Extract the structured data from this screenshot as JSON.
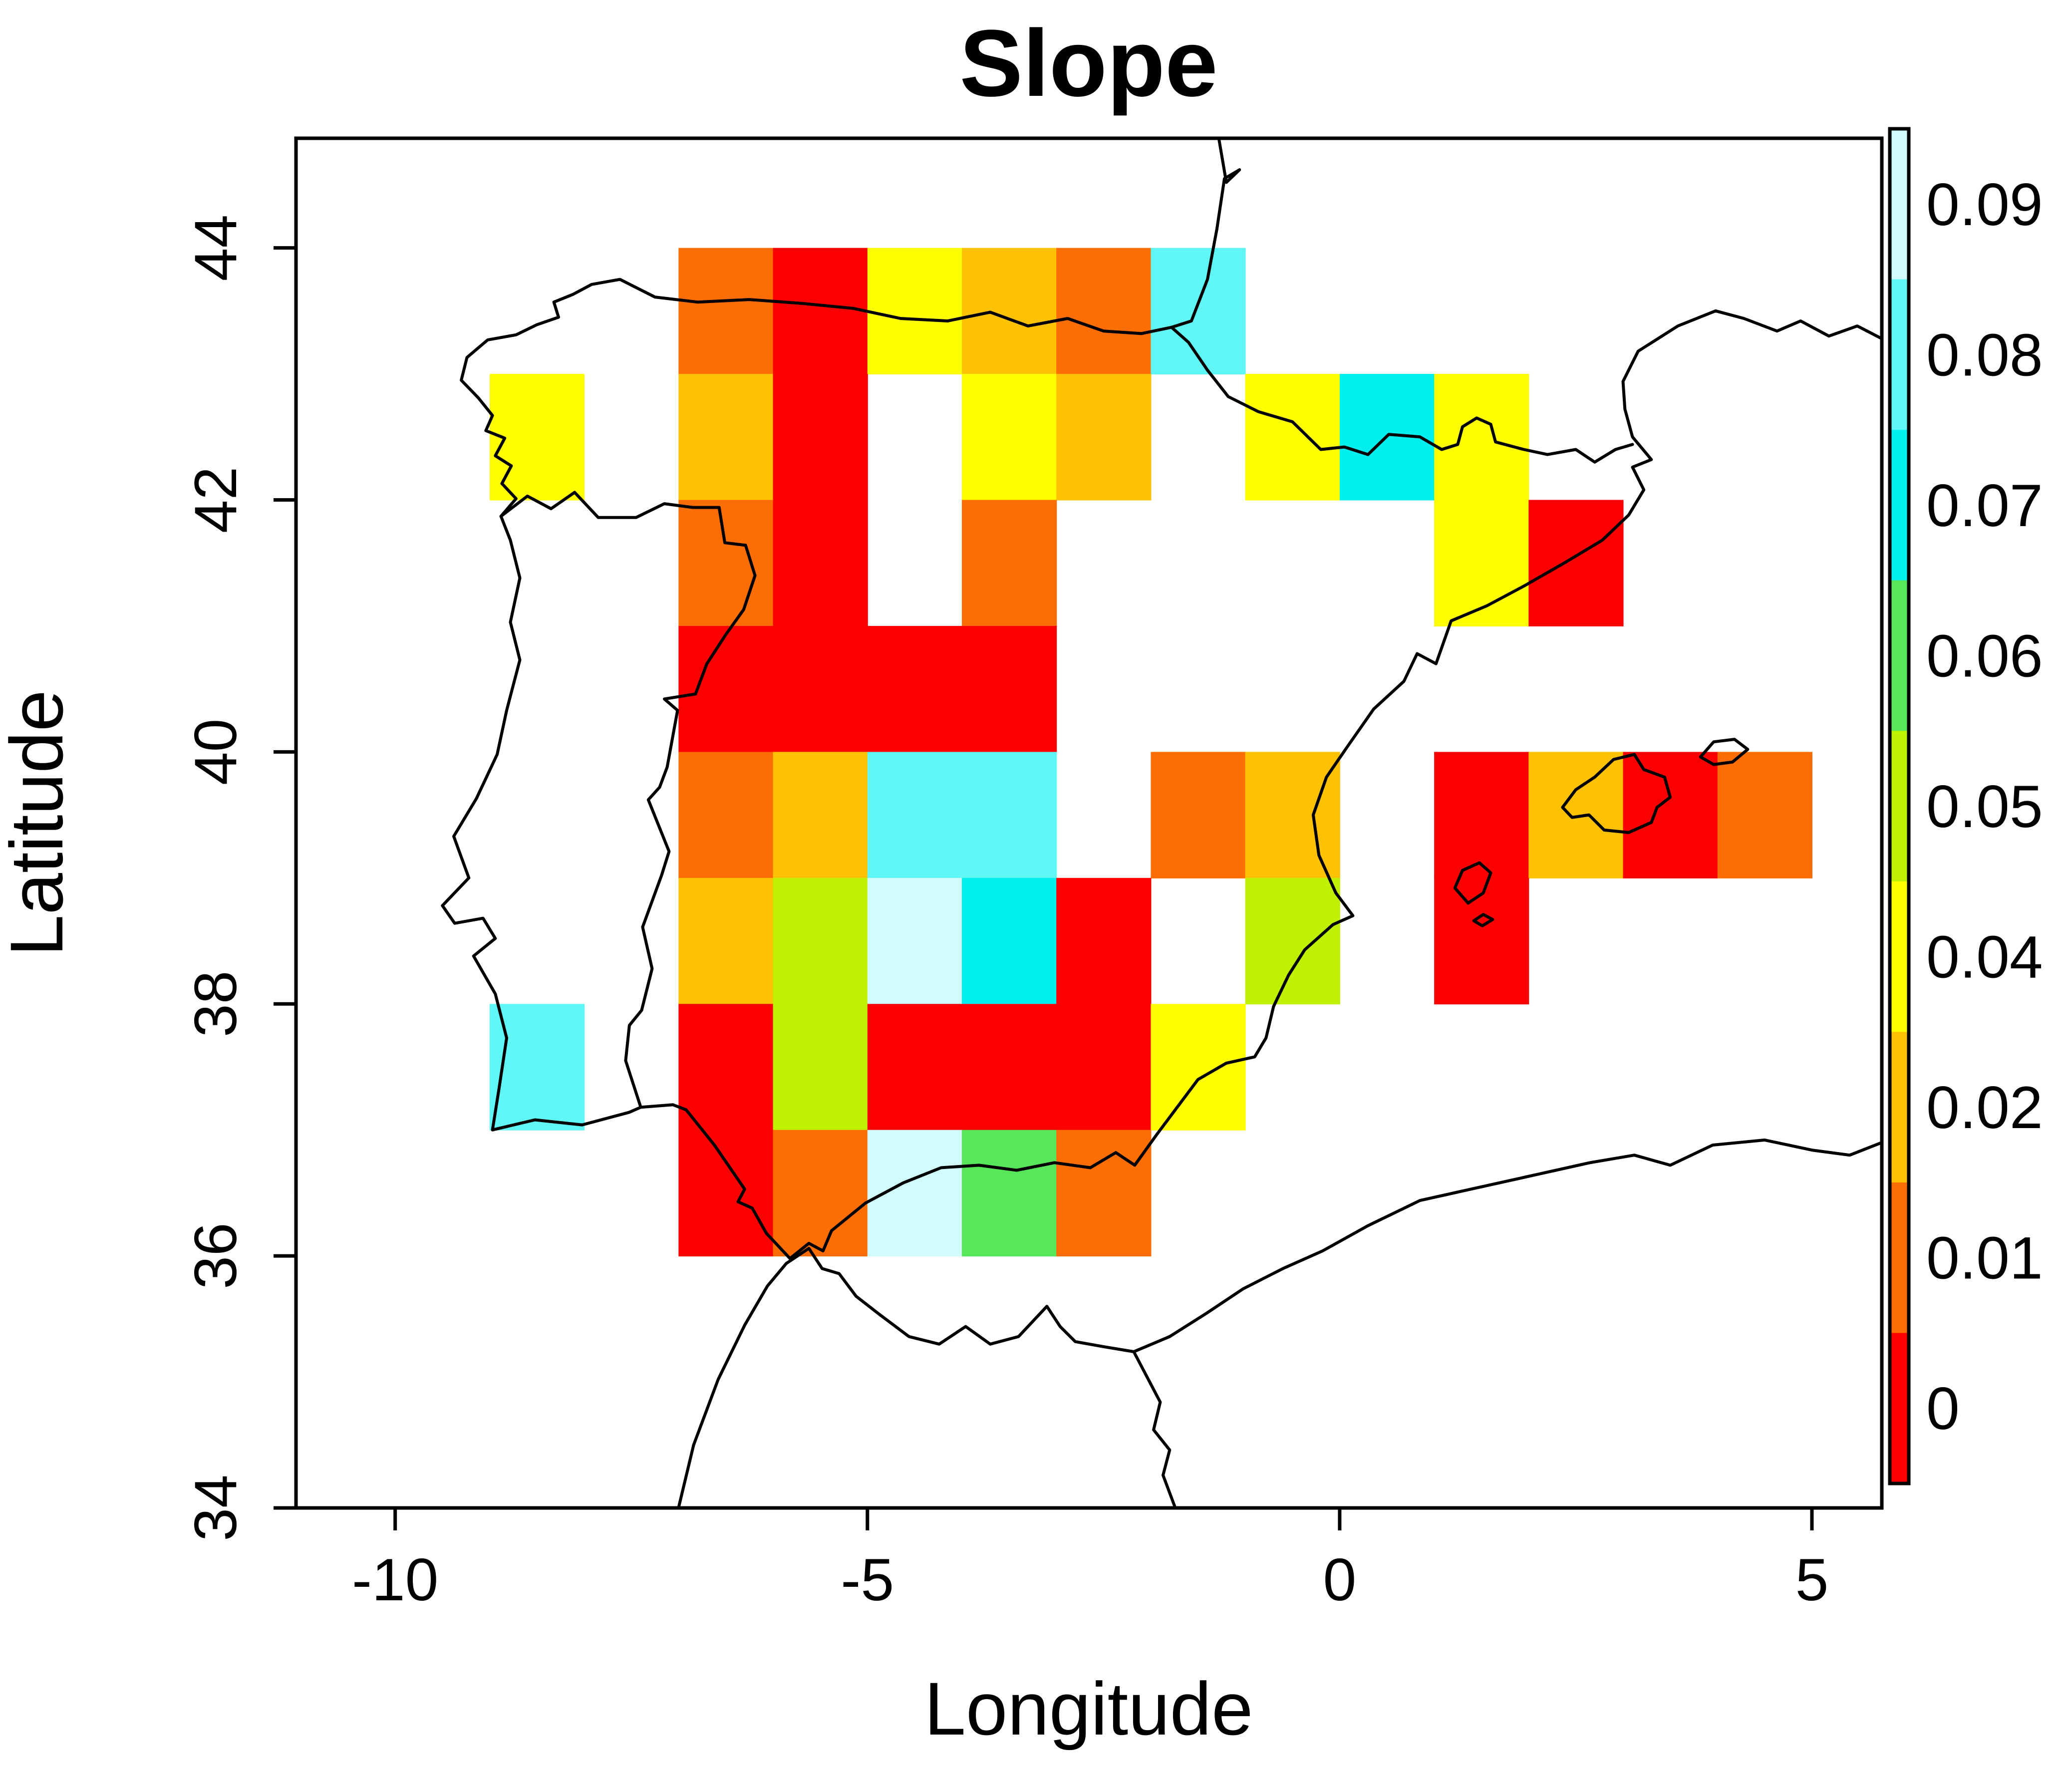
{
  "title": "Slope",
  "axes": {
    "x_label": "Longitude",
    "y_label": "Latitude",
    "x_ticks": [
      {
        "value": -10,
        "label": "-10"
      },
      {
        "value": -5,
        "label": "-5"
      },
      {
        "value": 0,
        "label": "0"
      },
      {
        "value": 5,
        "label": "5"
      }
    ],
    "y_ticks": [
      {
        "value": 34,
        "label": "34"
      },
      {
        "value": 36,
        "label": "36"
      },
      {
        "value": 38,
        "label": "38"
      },
      {
        "value": 40,
        "label": "40"
      },
      {
        "value": 42,
        "label": "42"
      },
      {
        "value": 44,
        "label": "44"
      }
    ]
  },
  "legend": {
    "position": "right",
    "labels_top_to_bottom": [
      "0.09",
      "0.08",
      "0.07",
      "0.06",
      "0.05",
      "0.04",
      "0.02",
      "0.01",
      "0"
    ]
  },
  "chart_data": {
    "type": "heatmap",
    "title": "Slope",
    "xlabel": "Longitude",
    "ylabel": "Latitude",
    "lon_range": [
      -11.05,
      5.74
    ],
    "lat_range": [
      34,
      44.87
    ],
    "cell_size_deg": 1,
    "grid": false,
    "palette": {
      "0": "#FA0000",
      "0.01": "#FC6E04",
      "0.02": "#FFC103",
      "0.04": "#FFFF00",
      "0.05": "#BFF102",
      "0.06": "#58E65A",
      "0.07": "#00F0F0",
      "0.08": "#60F6F6",
      "0.09": "#D2FBFB"
    },
    "legend_segments_top_to_bottom": [
      "0.09",
      "0.08",
      "0.07",
      "0.06",
      "0.05",
      "0.04",
      "0.02",
      "0.01",
      "0"
    ],
    "cells": [
      {
        "lon": -7,
        "lat": 43,
        "level": "0.01"
      },
      {
        "lon": -6,
        "lat": 43,
        "level": "0"
      },
      {
        "lon": -5,
        "lat": 43,
        "level": "0.04"
      },
      {
        "lon": -4,
        "lat": 43,
        "level": "0.02"
      },
      {
        "lon": -3,
        "lat": 43,
        "level": "0.01"
      },
      {
        "lon": -2,
        "lat": 43,
        "level": "0.08"
      },
      {
        "lon": -9,
        "lat": 42,
        "level": "0.04"
      },
      {
        "lon": -7,
        "lat": 42,
        "level": "0.02"
      },
      {
        "lon": -6,
        "lat": 42,
        "level": "0"
      },
      {
        "lon": -4,
        "lat": 42,
        "level": "0.04"
      },
      {
        "lon": -3,
        "lat": 42,
        "level": "0.02"
      },
      {
        "lon": -1,
        "lat": 42,
        "level": "0.04"
      },
      {
        "lon": 0,
        "lat": 42,
        "level": "0.07"
      },
      {
        "lon": 1,
        "lat": 42,
        "level": "0.04"
      },
      {
        "lon": -7,
        "lat": 41,
        "level": "0.01"
      },
      {
        "lon": -6,
        "lat": 41,
        "level": "0"
      },
      {
        "lon": -4,
        "lat": 41,
        "level": "0.01"
      },
      {
        "lon": 1,
        "lat": 41,
        "level": "0.04"
      },
      {
        "lon": 2,
        "lat": 41,
        "level": "0"
      },
      {
        "lon": -7,
        "lat": 40,
        "level": "0"
      },
      {
        "lon": -6,
        "lat": 40,
        "level": "0"
      },
      {
        "lon": -5,
        "lat": 40,
        "level": "0"
      },
      {
        "lon": -4,
        "lat": 40,
        "level": "0"
      },
      {
        "lon": -7,
        "lat": 39,
        "level": "0.01"
      },
      {
        "lon": -6,
        "lat": 39,
        "level": "0.02"
      },
      {
        "lon": -5,
        "lat": 39,
        "level": "0.08"
      },
      {
        "lon": -4,
        "lat": 39,
        "level": "0.08"
      },
      {
        "lon": -2,
        "lat": 39,
        "level": "0.01"
      },
      {
        "lon": -1,
        "lat": 39,
        "level": "0.02"
      },
      {
        "lon": 1,
        "lat": 39,
        "level": "0"
      },
      {
        "lon": 2,
        "lat": 39,
        "level": "0.02"
      },
      {
        "lon": 3,
        "lat": 39,
        "level": "0"
      },
      {
        "lon": 4,
        "lat": 39,
        "level": "0.01"
      },
      {
        "lon": -7,
        "lat": 38,
        "level": "0.02"
      },
      {
        "lon": -6,
        "lat": 38,
        "level": "0.05"
      },
      {
        "lon": -5,
        "lat": 38,
        "level": "0.09"
      },
      {
        "lon": -4,
        "lat": 38,
        "level": "0.07"
      },
      {
        "lon": -3,
        "lat": 38,
        "level": "0"
      },
      {
        "lon": -1,
        "lat": 38,
        "level": "0.05"
      },
      {
        "lon": 1,
        "lat": 38,
        "level": "0"
      },
      {
        "lon": -9,
        "lat": 37,
        "level": "0.08"
      },
      {
        "lon": -7,
        "lat": 37,
        "level": "0"
      },
      {
        "lon": -6,
        "lat": 37,
        "level": "0.05"
      },
      {
        "lon": -5,
        "lat": 37,
        "level": "0"
      },
      {
        "lon": -4,
        "lat": 37,
        "level": "0"
      },
      {
        "lon": -3,
        "lat": 37,
        "level": "0"
      },
      {
        "lon": -2,
        "lat": 37,
        "level": "0.04"
      },
      {
        "lon": -7,
        "lat": 36,
        "level": "0"
      },
      {
        "lon": -6,
        "lat": 36,
        "level": "0.01"
      },
      {
        "lon": -5,
        "lat": 36,
        "level": "0.09"
      },
      {
        "lon": -4,
        "lat": 36,
        "level": "0.06"
      },
      {
        "lon": -3,
        "lat": 36,
        "level": "0.01"
      }
    ],
    "coastlines": {
      "iberia_france_coast": [
        [
          -1.28,
          44.87
        ],
        [
          -1.2,
          44.52
        ],
        [
          -1.06,
          44.62
        ],
        [
          -1.22,
          44.55
        ],
        [
          -1.3,
          44.15
        ],
        [
          -1.4,
          43.75
        ],
        [
          -1.57,
          43.42
        ],
        [
          -1.78,
          43.37
        ],
        [
          -2.1,
          43.32
        ],
        [
          -2.5,
          43.34
        ],
        [
          -2.88,
          43.44
        ],
        [
          -3.3,
          43.38
        ],
        [
          -3.7,
          43.49
        ],
        [
          -4.15,
          43.42
        ],
        [
          -4.65,
          43.44
        ],
        [
          -5.15,
          43.52
        ],
        [
          -5.7,
          43.56
        ],
        [
          -6.25,
          43.59
        ],
        [
          -6.8,
          43.57
        ],
        [
          -7.25,
          43.61
        ],
        [
          -7.62,
          43.75
        ],
        [
          -7.92,
          43.71
        ],
        [
          -8.12,
          43.63
        ],
        [
          -8.32,
          43.57
        ],
        [
          -8.27,
          43.45
        ],
        [
          -8.5,
          43.39
        ],
        [
          -8.72,
          43.31
        ],
        [
          -9.02,
          43.27
        ],
        [
          -9.24,
          43.13
        ],
        [
          -9.3,
          42.95
        ],
        [
          -9.12,
          42.81
        ],
        [
          -8.97,
          42.67
        ],
        [
          -9.04,
          42.55
        ],
        [
          -8.84,
          42.49
        ],
        [
          -8.94,
          42.35
        ],
        [
          -8.77,
          42.27
        ],
        [
          -8.87,
          42.13
        ],
        [
          -8.72,
          42.01
        ],
        [
          -8.88,
          41.87
        ],
        [
          -8.78,
          41.68
        ],
        [
          -8.68,
          41.38
        ],
        [
          -8.78,
          41.03
        ],
        [
          -8.68,
          40.73
        ],
        [
          -8.82,
          40.33
        ],
        [
          -8.92,
          39.98
        ],
        [
          -9.14,
          39.63
        ],
        [
          -9.38,
          39.33
        ],
        [
          -9.22,
          39.0
        ],
        [
          -9.5,
          38.78
        ],
        [
          -9.37,
          38.64
        ],
        [
          -9.07,
          38.68
        ],
        [
          -8.94,
          38.52
        ],
        [
          -9.17,
          38.38
        ],
        [
          -8.94,
          38.08
        ],
        [
          -8.82,
          37.73
        ],
        [
          -8.9,
          37.33
        ],
        [
          -8.97,
          37.0
        ],
        [
          -8.52,
          37.08
        ],
        [
          -8.02,
          37.04
        ],
        [
          -7.52,
          37.14
        ],
        [
          -7.4,
          37.18
        ],
        [
          -7.06,
          37.2
        ],
        [
          -6.92,
          37.16
        ],
        [
          -6.62,
          36.88
        ],
        [
          -6.3,
          36.53
        ],
        [
          -6.37,
          36.43
        ],
        [
          -6.22,
          36.38
        ],
        [
          -6.07,
          36.18
        ],
        [
          -5.82,
          35.98
        ],
        [
          -5.62,
          36.1
        ],
        [
          -5.47,
          36.04
        ],
        [
          -5.38,
          36.2
        ],
        [
          -5.02,
          36.42
        ],
        [
          -4.62,
          36.58
        ],
        [
          -4.22,
          36.7
        ],
        [
          -3.82,
          36.72
        ],
        [
          -3.42,
          36.68
        ],
        [
          -3.02,
          36.74
        ],
        [
          -2.64,
          36.7
        ],
        [
          -2.37,
          36.82
        ],
        [
          -2.17,
          36.72
        ],
        [
          -1.94,
          36.96
        ],
        [
          -1.72,
          37.18
        ],
        [
          -1.5,
          37.4
        ],
        [
          -1.2,
          37.53
        ],
        [
          -0.9,
          37.58
        ],
        [
          -0.78,
          37.73
        ],
        [
          -0.7,
          37.98
        ],
        [
          -0.54,
          38.23
        ],
        [
          -0.37,
          38.43
        ],
        [
          -0.07,
          38.63
        ],
        [
          0.14,
          38.7
        ],
        [
          -0.04,
          38.88
        ],
        [
          -0.22,
          39.18
        ],
        [
          -0.28,
          39.5
        ],
        [
          -0.14,
          39.8
        ],
        [
          0.08,
          40.04
        ],
        [
          0.36,
          40.34
        ],
        [
          0.68,
          40.56
        ],
        [
          0.82,
          40.78
        ],
        [
          1.02,
          40.7
        ],
        [
          1.18,
          41.04
        ],
        [
          1.56,
          41.16
        ],
        [
          1.96,
          41.32
        ],
        [
          2.38,
          41.5
        ],
        [
          2.78,
          41.68
        ],
        [
          3.06,
          41.88
        ],
        [
          3.22,
          42.08
        ],
        [
          3.1,
          42.26
        ],
        [
          3.3,
          42.32
        ],
        [
          3.1,
          42.5
        ],
        [
          3.02,
          42.72
        ],
        [
          3.0,
          42.94
        ],
        [
          3.16,
          43.18
        ],
        [
          3.58,
          43.38
        ],
        [
          3.98,
          43.5
        ],
        [
          4.28,
          43.44
        ],
        [
          4.63,
          43.34
        ],
        [
          4.88,
          43.42
        ],
        [
          5.18,
          43.3
        ],
        [
          5.48,
          43.38
        ],
        [
          5.74,
          43.28
        ]
      ],
      "portugal_spain_border": [
        [
          -8.88,
          41.87
        ],
        [
          -8.6,
          42.03
        ],
        [
          -8.35,
          41.93
        ],
        [
          -8.1,
          42.06
        ],
        [
          -7.85,
          41.86
        ],
        [
          -7.45,
          41.86
        ],
        [
          -7.15,
          41.97
        ],
        [
          -6.85,
          41.94
        ],
        [
          -6.57,
          41.94
        ],
        [
          -6.51,
          41.66
        ],
        [
          -6.29,
          41.64
        ],
        [
          -6.19,
          41.4
        ],
        [
          -6.31,
          41.13
        ],
        [
          -6.5,
          40.93
        ],
        [
          -6.7,
          40.7
        ],
        [
          -6.82,
          40.46
        ],
        [
          -7.15,
          40.42
        ],
        [
          -7.01,
          40.33
        ],
        [
          -7.12,
          39.88
        ],
        [
          -7.2,
          39.72
        ],
        [
          -7.32,
          39.62
        ],
        [
          -7.1,
          39.21
        ],
        [
          -7.18,
          39.02
        ],
        [
          -7.38,
          38.61
        ],
        [
          -7.28,
          38.28
        ],
        [
          -7.39,
          37.95
        ],
        [
          -7.52,
          37.83
        ],
        [
          -7.56,
          37.55
        ],
        [
          -7.4,
          37.18
        ]
      ],
      "france_spain_border": [
        [
          -1.78,
          43.37
        ],
        [
          -1.6,
          43.25
        ],
        [
          -1.4,
          43.03
        ],
        [
          -1.18,
          42.82
        ],
        [
          -0.86,
          42.7
        ],
        [
          -0.5,
          42.62
        ],
        [
          -0.2,
          42.4
        ],
        [
          0.05,
          42.42
        ],
        [
          0.3,
          42.36
        ],
        [
          0.52,
          42.52
        ],
        [
          0.85,
          42.5
        ],
        [
          1.08,
          42.4
        ],
        [
          1.25,
          42.44
        ],
        [
          1.3,
          42.58
        ],
        [
          1.45,
          42.65
        ],
        [
          1.6,
          42.6
        ],
        [
          1.65,
          42.46
        ],
        [
          1.95,
          42.4
        ],
        [
          2.2,
          42.36
        ],
        [
          2.5,
          42.4
        ],
        [
          2.7,
          42.3
        ],
        [
          2.92,
          42.4
        ],
        [
          3.1,
          42.44
        ]
      ],
      "africa_coast": [
        [
          -7.0,
          34.0
        ],
        [
          -6.84,
          34.5
        ],
        [
          -6.58,
          35.02
        ],
        [
          -6.3,
          35.45
        ],
        [
          -6.06,
          35.76
        ],
        [
          -5.86,
          35.94
        ],
        [
          -5.62,
          36.06
        ],
        [
          -5.48,
          35.9
        ],
        [
          -5.3,
          35.86
        ],
        [
          -5.12,
          35.68
        ],
        [
          -4.88,
          35.54
        ],
        [
          -4.56,
          35.36
        ],
        [
          -4.24,
          35.3
        ],
        [
          -3.96,
          35.44
        ],
        [
          -3.7,
          35.3
        ],
        [
          -3.4,
          35.36
        ],
        [
          -3.1,
          35.6
        ],
        [
          -2.96,
          35.44
        ],
        [
          -2.8,
          35.32
        ],
        [
          -2.5,
          35.28
        ],
        [
          -2.18,
          35.24
        ],
        [
          -1.8,
          35.36
        ],
        [
          -1.42,
          35.54
        ],
        [
          -1.02,
          35.74
        ],
        [
          -0.6,
          35.9
        ],
        [
          -0.18,
          36.04
        ],
        [
          0.3,
          36.24
        ],
        [
          0.85,
          36.44
        ],
        [
          1.45,
          36.54
        ],
        [
          2.05,
          36.64
        ],
        [
          2.65,
          36.74
        ],
        [
          3.12,
          36.8
        ],
        [
          3.5,
          36.72
        ],
        [
          3.95,
          36.88
        ],
        [
          4.5,
          36.92
        ],
        [
          5.0,
          36.84
        ],
        [
          5.4,
          36.8
        ],
        [
          5.74,
          36.9
        ]
      ],
      "morocco_algeria_border": [
        [
          -2.18,
          35.24
        ],
        [
          -2.04,
          35.04
        ],
        [
          -1.9,
          34.84
        ],
        [
          -1.97,
          34.62
        ],
        [
          -1.8,
          34.46
        ],
        [
          -1.87,
          34.26
        ],
        [
          -1.74,
          34.0
        ]
      ],
      "mallorca": [
        [
          2.36,
          39.56
        ],
        [
          2.5,
          39.7
        ],
        [
          2.7,
          39.8
        ],
        [
          2.9,
          39.94
        ],
        [
          3.12,
          39.98
        ],
        [
          3.22,
          39.86
        ],
        [
          3.44,
          39.8
        ],
        [
          3.5,
          39.64
        ],
        [
          3.36,
          39.56
        ],
        [
          3.3,
          39.44
        ],
        [
          3.06,
          39.36
        ],
        [
          2.8,
          39.38
        ],
        [
          2.64,
          39.5
        ],
        [
          2.46,
          39.48
        ],
        [
          2.36,
          39.56
        ]
      ],
      "ibiza": [
        [
          1.22,
          38.92
        ],
        [
          1.3,
          39.06
        ],
        [
          1.48,
          39.12
        ],
        [
          1.6,
          39.04
        ],
        [
          1.52,
          38.88
        ],
        [
          1.36,
          38.8
        ],
        [
          1.22,
          38.92
        ]
      ],
      "menorca": [
        [
          3.82,
          39.96
        ],
        [
          3.96,
          40.08
        ],
        [
          4.18,
          40.1
        ],
        [
          4.32,
          40.02
        ],
        [
          4.16,
          39.92
        ],
        [
          3.96,
          39.9
        ],
        [
          3.82,
          39.96
        ]
      ],
      "formentera": [
        [
          1.42,
          38.66
        ],
        [
          1.52,
          38.71
        ],
        [
          1.62,
          38.67
        ],
        [
          1.51,
          38.62
        ],
        [
          1.42,
          38.66
        ]
      ]
    }
  }
}
